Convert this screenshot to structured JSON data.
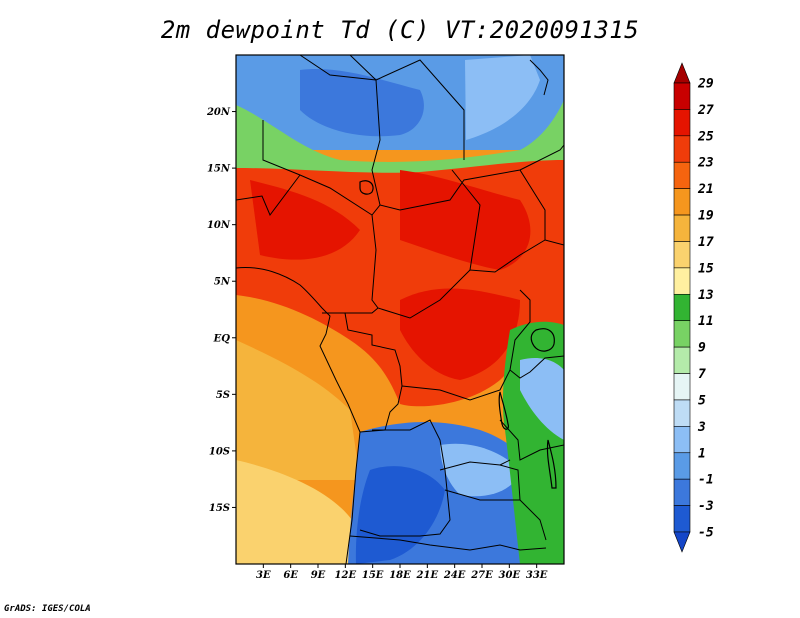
{
  "title": "2m dewpoint Td (C) VT:2020091315",
  "credit": "GrADS: IGES/COLA",
  "map": {
    "lon_range": [
      0,
      36
    ],
    "lat_range": [
      -20,
      25
    ],
    "x_ticks": [
      {
        "lon": 3,
        "label": "3E"
      },
      {
        "lon": 6,
        "label": "6E"
      },
      {
        "lon": 9,
        "label": "9E"
      },
      {
        "lon": 12,
        "label": "12E"
      },
      {
        "lon": 15,
        "label": "15E"
      },
      {
        "lon": 18,
        "label": "18E"
      },
      {
        "lon": 21,
        "label": "21E"
      },
      {
        "lon": 24,
        "label": "24E"
      },
      {
        "lon": 27,
        "label": "27E"
      },
      {
        "lon": 30,
        "label": "30E"
      },
      {
        "lon": 33,
        "label": "33E"
      }
    ],
    "y_ticks": [
      {
        "lat": 20,
        "label": "20N"
      },
      {
        "lat": 15,
        "label": "15N"
      },
      {
        "lat": 10,
        "label": "10N"
      },
      {
        "lat": 5,
        "label": "5N"
      },
      {
        "lat": 0,
        "label": "EQ"
      },
      {
        "lat": -5,
        "label": "5S"
      },
      {
        "lat": -10,
        "label": "10S"
      },
      {
        "lat": -15,
        "label": "15S"
      }
    ]
  },
  "colorbar": {
    "levels": [
      "29",
      "27",
      "25",
      "23",
      "21",
      "19",
      "17",
      "15",
      "13",
      "11",
      "9",
      "7",
      "5",
      "3",
      "1",
      "-1",
      "-3",
      "-5"
    ],
    "colors": [
      "#a50000",
      "#c80000",
      "#e51400",
      "#f03c0a",
      "#f5640f",
      "#f5961e",
      "#f5b43c",
      "#fad26e",
      "#fff0a0",
      "#32b432",
      "#78d264",
      "#b4ebaa",
      "#e6f5f5",
      "#bedcf5",
      "#8cbef5",
      "#5a9be6",
      "#3c78dc",
      "#1e5ad2",
      "#1446c8"
    ]
  },
  "field_colors": {
    "sahara_dry": "#5a9be6",
    "sahara_darker": "#3c78dc",
    "desert_light": "#8cbef5",
    "transition_green": "#78d264",
    "sahel_moist": "#f03c0a",
    "deep_red": "#e51400",
    "ocean_orange": "#f5961e",
    "ocean_light": "#f5b43c",
    "ocean_pale": "#fad26e",
    "southern_dry": "#3c78dc",
    "southern_darkest": "#1e5ad2",
    "east_africa_green": "#32b432"
  }
}
